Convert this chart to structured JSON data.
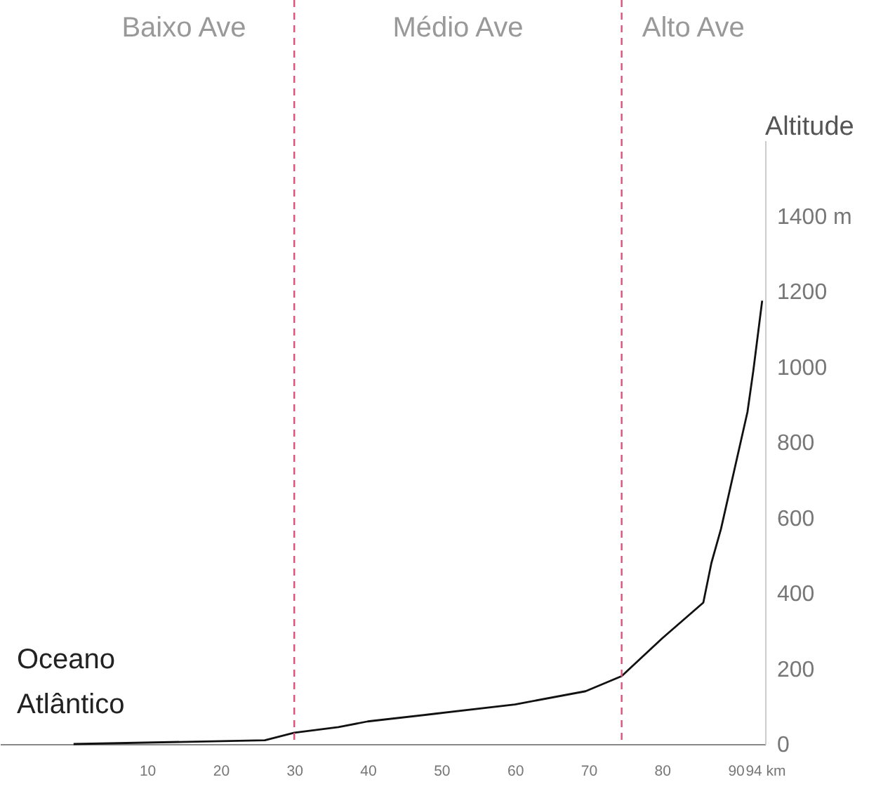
{
  "chart_data": {
    "type": "line",
    "ylabel": "Altitude",
    "annotations": [
      "Baixo Ave",
      "Médio Ave",
      "Alto Ave",
      "Oceano Atlântico"
    ],
    "x": [
      0,
      26,
      30,
      36,
      40,
      49,
      60,
      69.6,
      74.5,
      80,
      85.6,
      86.7,
      88,
      91.6,
      92.4,
      93.6
    ],
    "series": [
      {
        "color": "#111111",
        "values": [
          0,
          10,
          30,
          45,
          60,
          80,
          105,
          140,
          180,
          280,
          375,
          480,
          570,
          880,
          990,
          1175
        ]
      }
    ],
    "xlim": [
      -10,
      94
    ],
    "xticks": [
      10,
      20,
      30,
      40,
      50,
      60,
      70,
      80,
      90,
      {
        "value": 94,
        "label": "94 km"
      }
    ],
    "ylim": [
      0,
      1600
    ],
    "yticks": [
      0,
      200,
      400,
      600,
      800,
      1000,
      1200,
      {
        "value": 1400,
        "label": "1400 m"
      }
    ],
    "ref_lines": [
      {
        "axis": "x",
        "value": 30,
        "color": "#e0507a",
        "line_style": "dashed"
      },
      {
        "axis": "x",
        "value": 74.5,
        "color": "#e0507a",
        "line_style": "dashed"
      }
    ],
    "grid": false,
    "marker": "none",
    "line_style": "solid"
  }
}
